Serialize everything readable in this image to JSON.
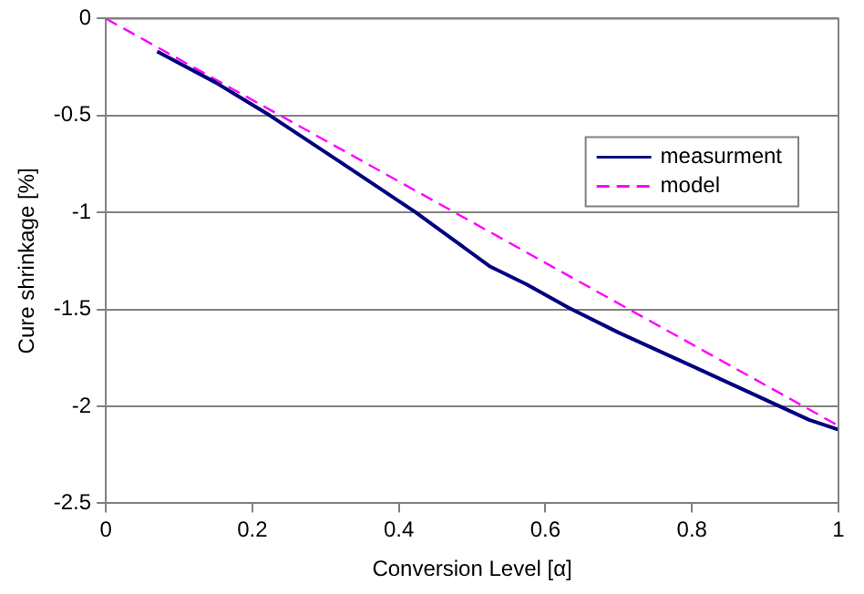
{
  "chart_data": {
    "type": "line",
    "xlabel": "Conversion Level [α]",
    "ylabel": "Cure shrinkage [%]",
    "xlim": [
      0,
      1
    ],
    "xticks": [
      0,
      0.2,
      0.4,
      0.6,
      0.8,
      1
    ],
    "ylim": [
      -2.5,
      0
    ],
    "yticks": [
      0,
      -0.5,
      -1,
      -1.5,
      -2,
      -2.5
    ],
    "grid": "y",
    "legend": "top right",
    "series": [
      {
        "name": "measurment",
        "color": "#000080",
        "line_style": "solid",
        "x": [
          0.07,
          0.15,
          0.224,
          0.32,
          0.423,
          0.525,
          0.574,
          0.631,
          0.7,
          0.799,
          0.914,
          0.96,
          1.0
        ],
        "values": [
          -0.17,
          -0.33,
          -0.5,
          -0.74,
          -1,
          -1.28,
          -1.37,
          -1.49,
          -1.62,
          -1.79,
          -1.99,
          -2.07,
          -2.12
        ]
      },
      {
        "name": "model",
        "color": "#ff00ff",
        "line_style": "dashed",
        "x": [
          0,
          1
        ],
        "values": [
          0,
          -2.1
        ]
      }
    ]
  }
}
